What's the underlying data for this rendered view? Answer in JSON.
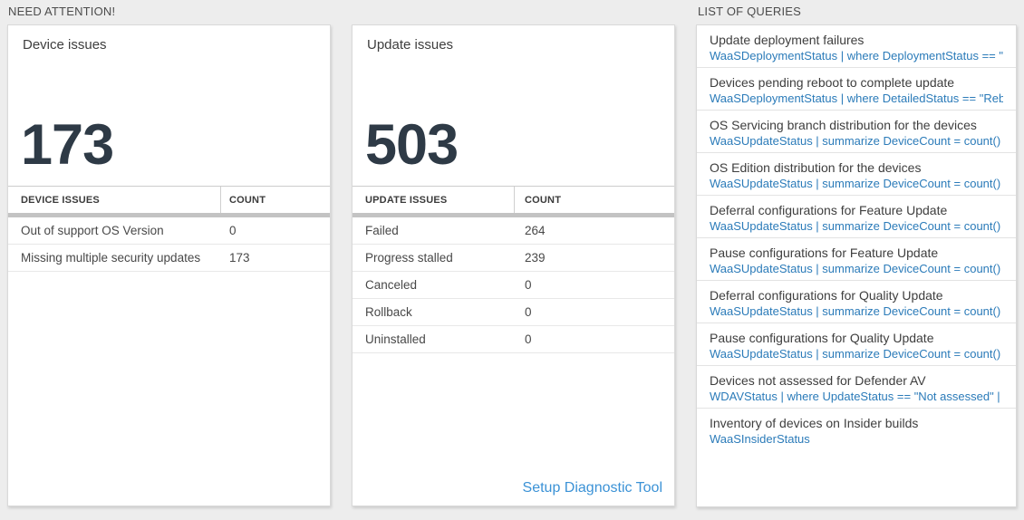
{
  "sections": {
    "need_attention": "NEED ATTENTION!",
    "list_of_queries": "LIST OF QUERIES"
  },
  "device_issues_card": {
    "title": "Device issues",
    "count": "173",
    "table": {
      "col_issue": "DEVICE ISSUES",
      "col_count": "COUNT",
      "rows": [
        {
          "label": "Out of support OS Version",
          "count": "0"
        },
        {
          "label": "Missing multiple security updates",
          "count": "173"
        }
      ]
    }
  },
  "update_issues_card": {
    "title": "Update issues",
    "count": "503",
    "table": {
      "col_issue": "UPDATE ISSUES",
      "col_count": "COUNT",
      "rows": [
        {
          "label": "Failed",
          "count": "264"
        },
        {
          "label": "Progress stalled",
          "count": "239"
        },
        {
          "label": "Canceled",
          "count": "0"
        },
        {
          "label": "Rollback",
          "count": "0"
        },
        {
          "label": "Uninstalled",
          "count": "0"
        }
      ]
    },
    "diagnostic_link": "Setup Diagnostic Tool"
  },
  "queries_panel": {
    "items": [
      {
        "title": "Update deployment failures",
        "query": "WaaSDeploymentStatus | where DeploymentStatus == \"Failed\" |..."
      },
      {
        "title": "Devices pending reboot to complete update",
        "query": "WaaSDeploymentStatus | where DetailedStatus == \"Reboot pend..."
      },
      {
        "title": "OS Servicing branch distribution for the devices",
        "query": "WaaSUpdateStatus | summarize DeviceCount = count() by OSSer..."
      },
      {
        "title": "OS Edition distribution for the devices",
        "query": "WaaSUpdateStatus | summarize DeviceCount = count() by OSEdit..."
      },
      {
        "title": "Deferral configurations for Feature Update",
        "query": "WaaSUpdateStatus | summarize DeviceCount = count() by Featur..."
      },
      {
        "title": "Pause configurations for Feature Update",
        "query": "WaaSUpdateStatus | summarize DeviceCount = count() by Featur..."
      },
      {
        "title": "Deferral configurations for Quality Update",
        "query": "WaaSUpdateStatus | summarize DeviceCount = count() by Qualit..."
      },
      {
        "title": "Pause configurations for Quality Update",
        "query": "WaaSUpdateStatus | summarize DeviceCount = count() by Qualit..."
      },
      {
        "title": "Devices not assessed for Defender AV",
        "query": "WDAVStatus | where UpdateStatus == \"Not assessed\" | render ta..."
      },
      {
        "title": "Inventory of devices on Insider builds",
        "query": "WaaSInsiderStatus"
      }
    ]
  },
  "colors": {
    "background": "#ededed",
    "card_border": "#d9d9d9",
    "accent_link": "#3b92d6",
    "query_link": "#2b7bb9",
    "big_number": "#2e3a46",
    "table_bar": "#c3c3c3"
  }
}
